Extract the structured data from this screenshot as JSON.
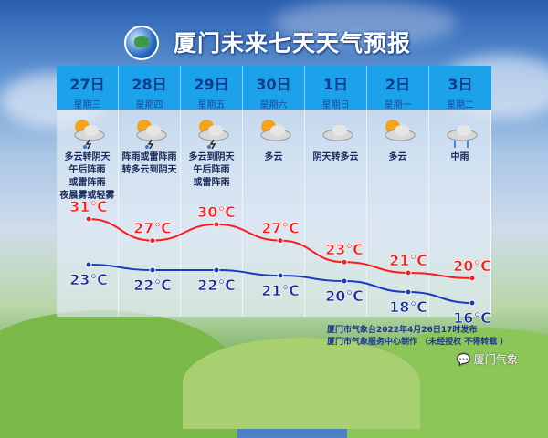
{
  "title": "厦门未来七天天气预报",
  "days": [
    {
      "date": "27日",
      "weekday": "星期三",
      "icon": "sun-cloud-thunder-rain-icon",
      "desc": "多云转阴天\n午后阵雨\n或雷阵雨\n夜晨雾或轻雾",
      "high": "31℃",
      "low": "23℃",
      "hi": 31,
      "lo": 23
    },
    {
      "date": "28日",
      "weekday": "星期四",
      "icon": "sun-cloud-thunder-rain-icon",
      "desc": "阵雨或雷阵雨\n转多云到阴天",
      "high": "27℃",
      "low": "22℃",
      "hi": 27,
      "lo": 22
    },
    {
      "date": "29日",
      "weekday": "星期五",
      "icon": "sun-cloud-thunder-rain-icon",
      "desc": "多云到阴天\n午后阵雨\n或雷阵雨",
      "high": "30℃",
      "low": "22℃",
      "hi": 30,
      "lo": 22
    },
    {
      "date": "30日",
      "weekday": "星期六",
      "icon": "partly-cloudy-icon",
      "desc": "多云",
      "high": "27℃",
      "low": "21℃",
      "hi": 27,
      "lo": 21
    },
    {
      "date": "1日",
      "weekday": "星期日",
      "icon": "cloud-icon",
      "desc": "阴天转多云",
      "high": "23℃",
      "low": "20℃",
      "hi": 23,
      "lo": 20
    },
    {
      "date": "2日",
      "weekday": "星期一",
      "icon": "partly-cloudy-icon",
      "desc": "多云",
      "high": "21℃",
      "low": "18℃",
      "hi": 21,
      "lo": 18
    },
    {
      "date": "3日",
      "weekday": "星期二",
      "icon": "rain-icon",
      "desc": "中雨",
      "high": "20℃",
      "low": "16℃",
      "hi": 20,
      "lo": 16
    }
  ],
  "footer": {
    "line1": "厦门市气象台2022年4月26日17时发布",
    "line2": "厦门市气象服务中心制作 （未经授权 不得转载 ）"
  },
  "watermark": "厦门气象",
  "colors": {
    "high": "#ff1a1a",
    "low": "#1a2a9c",
    "header": "#1ba2ea"
  }
}
